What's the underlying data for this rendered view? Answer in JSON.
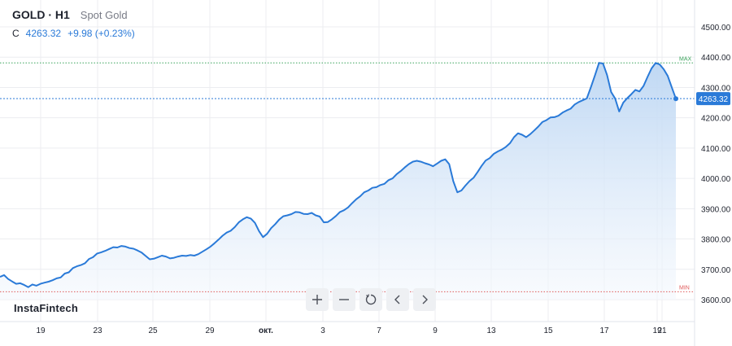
{
  "header": {
    "symbol": "GOLD · H1",
    "description": "Spot Gold",
    "quote_label": "C",
    "quote_price": "4263.32",
    "quote_change": "+9.98 (+0.23%)"
  },
  "brand": "InstaFintech",
  "toolbar": {
    "zoom_in": "plus-icon",
    "zoom_out": "minus-icon",
    "reset": "reset-icon",
    "scroll_left": "chevron-left-icon",
    "scroll_right": "chevron-right-icon"
  },
  "colors": {
    "line": "#2a7ad8",
    "fill_top": "#bcd6f3",
    "fill_bottom": "#f4f8fd",
    "max_marker": "#3aa35b",
    "min_marker": "#e05a5a",
    "grid": "#ecedf0"
  },
  "chart_data": {
    "type": "area",
    "title": "",
    "xlabel": "",
    "ylabel": "",
    "ylim": [
      3600,
      4500
    ],
    "y_ticks": [
      "3600.00",
      "3700.00",
      "3800.00",
      "3900.00",
      "4000.00",
      "4100.00",
      "4200.00",
      "4300.00",
      "4400.00",
      "4500.00"
    ],
    "x_ticks": [
      "19",
      "23",
      "25",
      "29",
      "окт.",
      "3",
      "7",
      "9",
      "13",
      "15",
      "17",
      "19",
      "21"
    ],
    "last_price_label": "4263.32",
    "max_label": "MAX",
    "min_label": "MIN",
    "max_value": 4381,
    "min_value": 3626,
    "last_value": 4263.32,
    "grid": true,
    "series": [
      {
        "values": [
          3675,
          3681,
          3668,
          3660,
          3652,
          3654,
          3648,
          3641,
          3650,
          3646,
          3652,
          3656,
          3659,
          3664,
          3670,
          3673,
          3686,
          3690,
          3704,
          3710,
          3714,
          3720,
          3734,
          3740,
          3752,
          3756,
          3761,
          3767,
          3773,
          3772,
          3777,
          3775,
          3770,
          3768,
          3762,
          3755,
          3744,
          3733,
          3735,
          3740,
          3745,
          3742,
          3736,
          3738,
          3742,
          3745,
          3744,
          3747,
          3745,
          3750,
          3758,
          3766,
          3775,
          3786,
          3798,
          3811,
          3821,
          3827,
          3839,
          3855,
          3865,
          3872,
          3867,
          3853,
          3826,
          3806,
          3817,
          3836,
          3849,
          3864,
          3875,
          3878,
          3882,
          3889,
          3888,
          3883,
          3882,
          3886,
          3878,
          3874,
          3855,
          3856,
          3865,
          3876,
          3889,
          3895,
          3904,
          3918,
          3931,
          3941,
          3954,
          3960,
          3969,
          3971,
          3978,
          3982,
          3994,
          4000,
          4014,
          4024,
          4036,
          4047,
          4055,
          4058,
          4055,
          4050,
          4046,
          4040,
          4049,
          4058,
          4063,
          4047,
          3991,
          3954,
          3960,
          3976,
          3991,
          4002,
          4021,
          4041,
          4059,
          4067,
          4081,
          4089,
          4095,
          4104,
          4116,
          4136,
          4149,
          4144,
          4136,
          4146,
          4158,
          4171,
          4186,
          4192,
          4201,
          4202,
          4207,
          4217,
          4224,
          4230,
          4244,
          4252,
          4258,
          4264,
          4301,
          4340,
          4381,
          4379,
          4341,
          4285,
          4263,
          4221,
          4250,
          4265,
          4278,
          4292,
          4287,
          4305,
          4335,
          4363,
          4381,
          4376,
          4360,
          4338,
          4300,
          4263
        ]
      }
    ]
  }
}
